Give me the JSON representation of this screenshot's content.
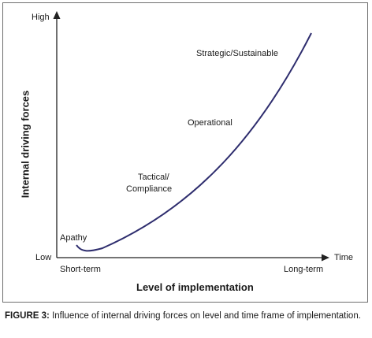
{
  "diagram": {
    "y_axis": {
      "title": "Internal driving forces",
      "high_label": "High",
      "low_label": "Low"
    },
    "x_axis": {
      "title": "Level of implementation",
      "end_label": "Time",
      "start_label": "Short-term",
      "finish_label": "Long-term"
    },
    "stages": [
      {
        "label": "Apathy"
      },
      {
        "label_line1": "Tactical/",
        "label_line2": "Compliance"
      },
      {
        "label": "Operational"
      },
      {
        "label": "Strategic/Sustainable"
      }
    ],
    "curve_color": "#2e2d6e"
  },
  "caption": {
    "label": "FIGURE 3:",
    "text": "Influence of internal driving forces on level and time frame of implementation."
  }
}
